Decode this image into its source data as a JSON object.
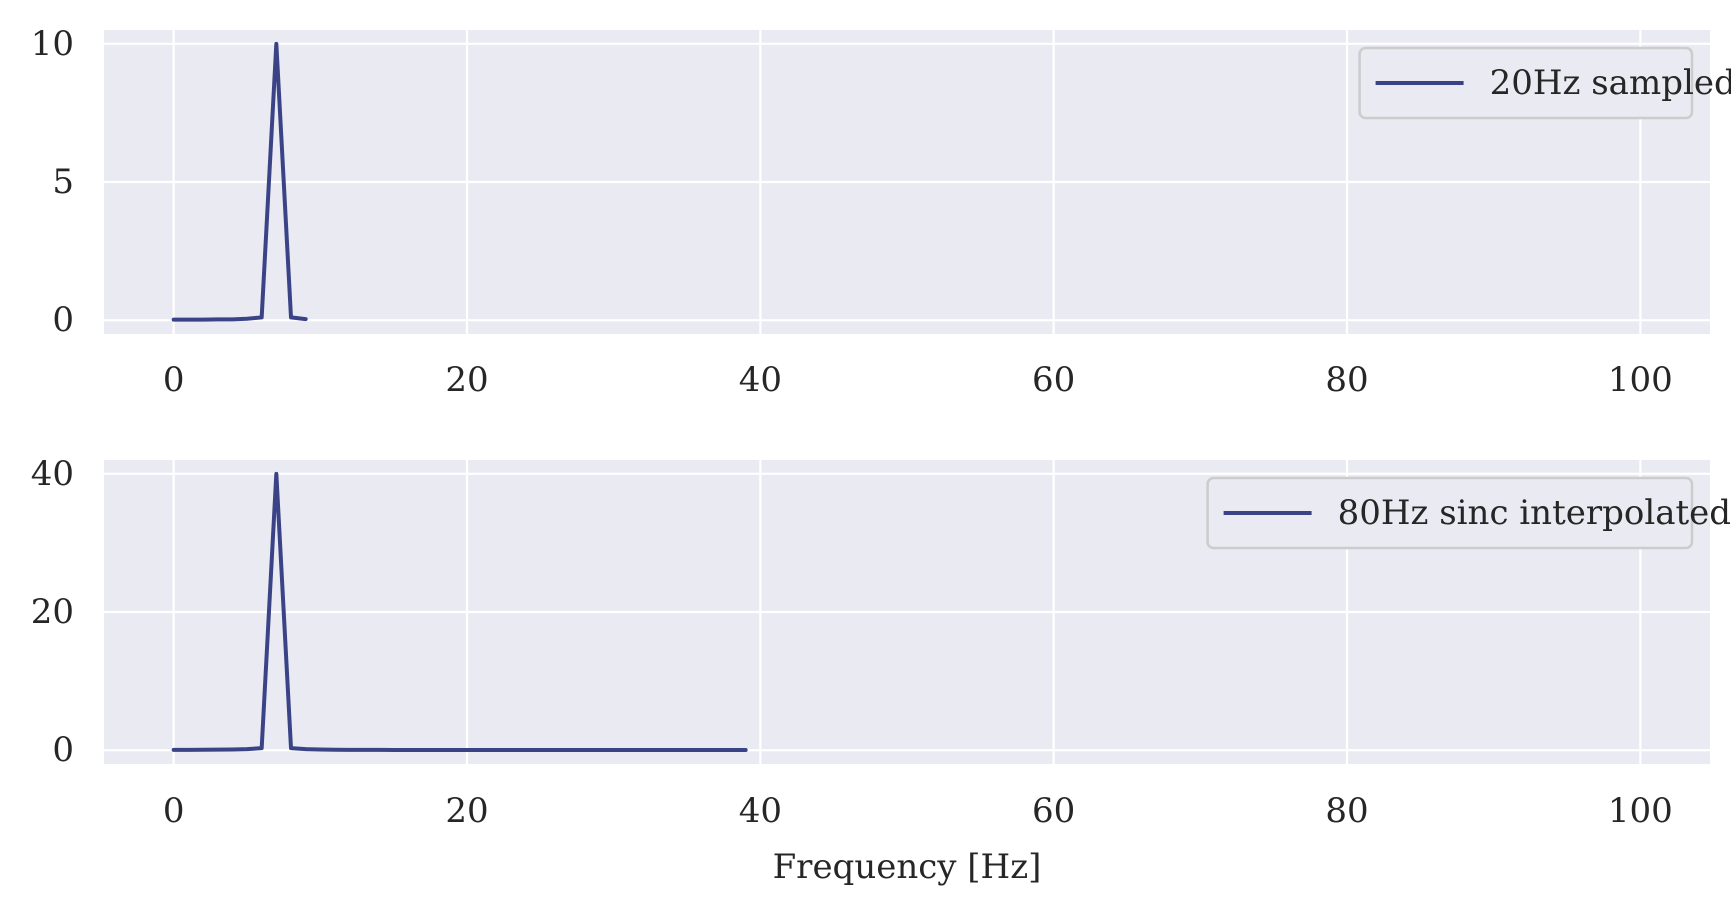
{
  "chart_data": [
    {
      "type": "line",
      "title": "",
      "xlabel": "",
      "ylabel": "",
      "xlim": [
        -4.75,
        104.75
      ],
      "ylim": [
        -0.5,
        10.5
      ],
      "xticks": [
        0,
        20,
        40,
        60,
        80,
        100
      ],
      "yticks": [
        0,
        5,
        10
      ],
      "grid": true,
      "legend_position": "top-right",
      "series": [
        {
          "name": "20Hz sampled",
          "color": "#3a4386",
          "x": [
            0,
            1,
            2,
            3,
            4,
            5,
            6,
            7,
            8,
            9
          ],
          "y": [
            0.02,
            0.02,
            0.02,
            0.03,
            0.03,
            0.05,
            0.1,
            10.0,
            0.1,
            0.04
          ]
        }
      ]
    },
    {
      "type": "line",
      "title": "",
      "xlabel": "Frequency [Hz]",
      "ylabel": "",
      "xlim": [
        -4.75,
        104.75
      ],
      "ylim": [
        -2,
        42
      ],
      "xticks": [
        0,
        20,
        40,
        60,
        80,
        100
      ],
      "yticks": [
        0,
        20,
        40
      ],
      "grid": true,
      "legend_position": "top-right",
      "series": [
        {
          "name": "80Hz sinc interpolated",
          "color": "#3a4386",
          "x": [
            0,
            1,
            2,
            3,
            4,
            5,
            6,
            7,
            8,
            9,
            10,
            11,
            12,
            13,
            14,
            15,
            16,
            17,
            18,
            19,
            20,
            21,
            22,
            23,
            24,
            25,
            26,
            27,
            28,
            29,
            30,
            31,
            32,
            33,
            34,
            35,
            36,
            37,
            38,
            39
          ],
          "y": [
            0.05,
            0.05,
            0.06,
            0.08,
            0.1,
            0.15,
            0.3,
            40.0,
            0.3,
            0.15,
            0.1,
            0.07,
            0.05,
            0.04,
            0.04,
            0.03,
            0.03,
            0.03,
            0.03,
            0.03,
            0.03,
            0.03,
            0.03,
            0.03,
            0.03,
            0.03,
            0.03,
            0.03,
            0.03,
            0.03,
            0.03,
            0.03,
            0.03,
            0.03,
            0.03,
            0.03,
            0.03,
            0.03,
            0.03,
            0.03
          ]
        }
      ]
    }
  ]
}
